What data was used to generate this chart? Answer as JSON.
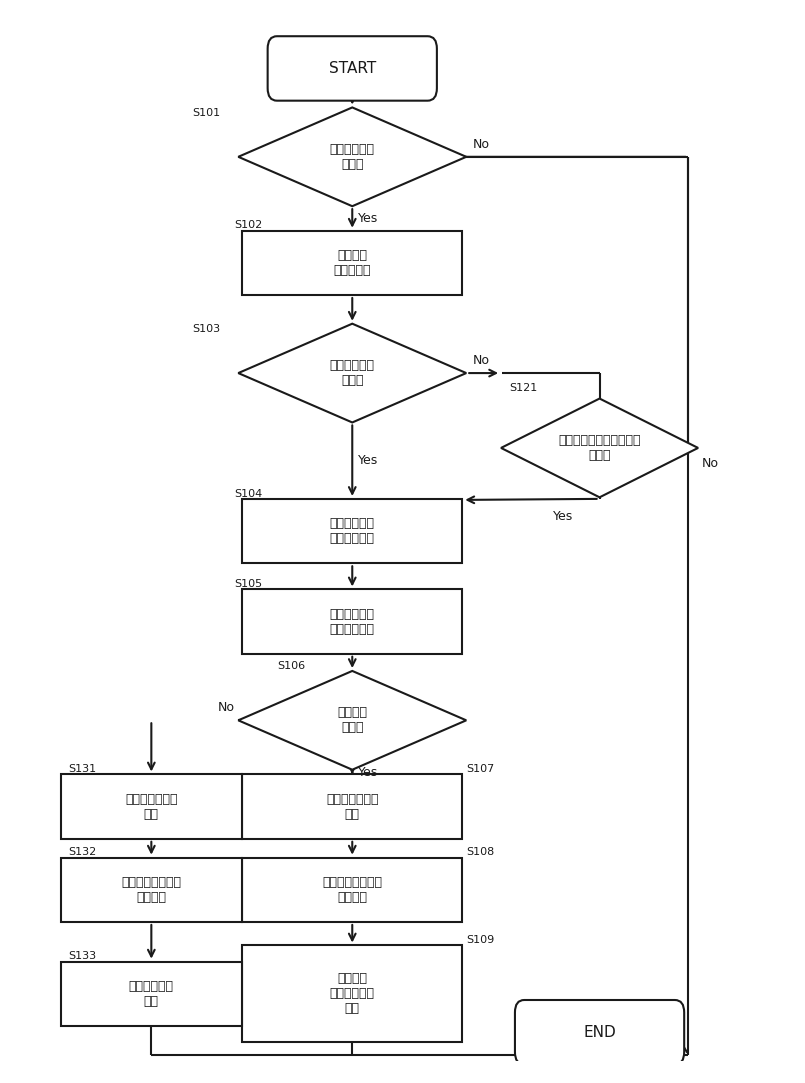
{
  "bg_color": "#ffffff",
  "line_color": "#1a1a1a",
  "text_color": "#1a1a1a",
  "fig_width": 8.05,
  "fig_height": 10.83,
  "start_label": "START",
  "end_label": "END",
  "s101_label": "負電圧の発生\nあり？",
  "s102_label": "流量増大\n電流値制限",
  "s103_label": "負電圧の発生\nあり？",
  "s121_label": "イグニッションスイッチ\nオフ？",
  "s104_label": "水素ポンプの\n凍結判定処理",
  "s105_label": "排気排水弁の\n凍結判定処理",
  "s106_label": "凍結発生\nあり？",
  "s107_label": "凍結発生の旨を\n報知",
  "s108_label": "燃料電池システム\n発電停止",
  "s109_label": "車両情報\n凍結推定原因\n記録",
  "s131_label": "故障発生の旨を\n報知",
  "s132_label": "燃料電池システム\n発電停止",
  "s133_label": "ダイアグ情報\n記録"
}
